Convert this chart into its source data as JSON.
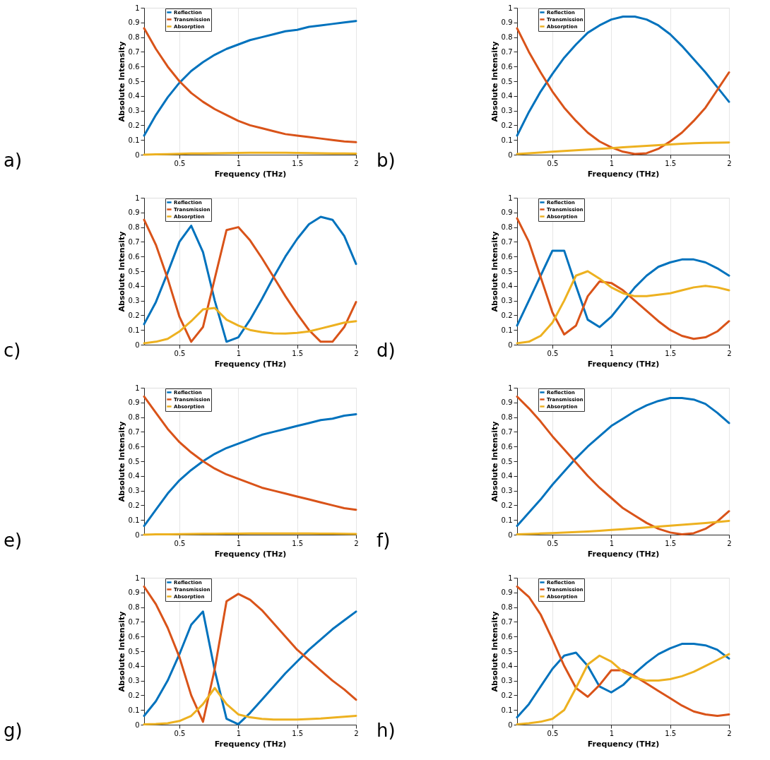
{
  "chart_data": [
    {
      "type": "line",
      "annotations": [
        "a)"
      ],
      "xlabel": "Frequency (THz)",
      "ylabel": "Absolute Intensity",
      "xlim": [
        0.2,
        2
      ],
      "xticks": [
        0.5,
        1,
        1.5,
        2
      ],
      "ylim": [
        0,
        1
      ],
      "yticks": [
        0,
        0.1,
        0.2,
        0.3,
        0.4,
        0.5,
        0.6,
        0.7,
        0.8,
        0.9,
        1
      ],
      "grid": "x",
      "legend": "top left",
      "x": [
        0.2,
        0.3,
        0.4,
        0.5,
        0.6,
        0.7,
        0.8,
        0.9,
        1.0,
        1.1,
        1.2,
        1.3,
        1.4,
        1.5,
        1.6,
        1.7,
        1.8,
        1.9,
        2.0
      ],
      "series": [
        {
          "name": "Reflection",
          "color": "#0072bd",
          "values": [
            0.13,
            0.27,
            0.39,
            0.49,
            0.57,
            0.63,
            0.68,
            0.72,
            0.75,
            0.78,
            0.8,
            0.82,
            0.84,
            0.85,
            0.87,
            0.88,
            0.89,
            0.9,
            0.91
          ]
        },
        {
          "name": "Transmission",
          "color": "#d95319",
          "values": [
            0.86,
            0.72,
            0.6,
            0.5,
            0.42,
            0.36,
            0.31,
            0.27,
            0.23,
            0.2,
            0.18,
            0.16,
            0.14,
            0.13,
            0.12,
            0.11,
            0.1,
            0.09,
            0.085
          ]
        },
        {
          "name": "Absorption",
          "color": "#edb120",
          "values": [
            0.0,
            0.002,
            0.004,
            0.006,
            0.008,
            0.009,
            0.01,
            0.011,
            0.012,
            0.013,
            0.013,
            0.013,
            0.013,
            0.012,
            0.011,
            0.01,
            0.009,
            0.008,
            0.007
          ]
        }
      ]
    },
    {
      "type": "line",
      "annotations": [
        "b)"
      ],
      "xlabel": "Frequency (THz)",
      "ylabel": "Absolute Intensity",
      "xlim": [
        0.2,
        2
      ],
      "xticks": [
        0.5,
        1,
        1.5,
        2
      ],
      "ylim": [
        0,
        1
      ],
      "yticks": [
        0,
        0.1,
        0.2,
        0.3,
        0.4,
        0.5,
        0.6,
        0.7,
        0.8,
        0.9,
        1
      ],
      "grid": "x",
      "legend": "top left",
      "x": [
        0.2,
        0.3,
        0.4,
        0.5,
        0.6,
        0.7,
        0.8,
        0.9,
        1.0,
        1.1,
        1.2,
        1.3,
        1.4,
        1.5,
        1.6,
        1.7,
        1.8,
        1.9,
        2.0
      ],
      "series": [
        {
          "name": "Reflection",
          "color": "#0072bd",
          "values": [
            0.13,
            0.29,
            0.43,
            0.55,
            0.66,
            0.75,
            0.83,
            0.88,
            0.92,
            0.94,
            0.94,
            0.92,
            0.88,
            0.82,
            0.74,
            0.65,
            0.56,
            0.46,
            0.36
          ]
        },
        {
          "name": "Transmission",
          "color": "#d95319",
          "values": [
            0.86,
            0.7,
            0.56,
            0.43,
            0.32,
            0.23,
            0.15,
            0.09,
            0.05,
            0.02,
            0.005,
            0.01,
            0.04,
            0.09,
            0.15,
            0.23,
            0.32,
            0.44,
            0.56
          ]
        },
        {
          "name": "Absorption",
          "color": "#edb120",
          "values": [
            0.005,
            0.01,
            0.015,
            0.02,
            0.025,
            0.03,
            0.035,
            0.04,
            0.045,
            0.05,
            0.055,
            0.06,
            0.065,
            0.07,
            0.075,
            0.078,
            0.08,
            0.082,
            0.083
          ]
        }
      ]
    },
    {
      "type": "line",
      "annotations": [
        "c)"
      ],
      "xlabel": "Frequency (THz)",
      "ylabel": "Absolute Intensity",
      "xlim": [
        0.2,
        2
      ],
      "xticks": [
        0.5,
        1,
        1.5,
        2
      ],
      "ylim": [
        0,
        1
      ],
      "yticks": [
        0,
        0.1,
        0.2,
        0.3,
        0.4,
        0.5,
        0.6,
        0.7,
        0.8,
        0.9,
        1
      ],
      "grid": "x",
      "legend": "top left",
      "x": [
        0.2,
        0.3,
        0.4,
        0.5,
        0.6,
        0.7,
        0.8,
        0.9,
        1.0,
        1.1,
        1.2,
        1.3,
        1.4,
        1.5,
        1.6,
        1.7,
        1.8,
        1.9,
        2.0
      ],
      "series": [
        {
          "name": "Reflection",
          "color": "#0072bd",
          "values": [
            0.14,
            0.29,
            0.49,
            0.7,
            0.81,
            0.63,
            0.3,
            0.02,
            0.05,
            0.17,
            0.31,
            0.46,
            0.6,
            0.72,
            0.82,
            0.87,
            0.85,
            0.74,
            0.55
          ]
        },
        {
          "name": "Transmission",
          "color": "#d95319",
          "values": [
            0.85,
            0.68,
            0.45,
            0.19,
            0.02,
            0.12,
            0.45,
            0.78,
            0.8,
            0.71,
            0.59,
            0.46,
            0.33,
            0.21,
            0.1,
            0.02,
            0.02,
            0.12,
            0.29
          ]
        },
        {
          "name": "Absorption",
          "color": "#edb120",
          "values": [
            0.01,
            0.02,
            0.04,
            0.09,
            0.16,
            0.24,
            0.25,
            0.17,
            0.13,
            0.1,
            0.085,
            0.077,
            0.076,
            0.08,
            0.09,
            0.11,
            0.13,
            0.15,
            0.16
          ]
        }
      ]
    },
    {
      "type": "line",
      "annotations": [
        "d)"
      ],
      "xlabel": "Frequency (THz)",
      "ylabel": "Absolute Intensity",
      "xlim": [
        0.2,
        2
      ],
      "xticks": [
        0.5,
        1,
        1.5,
        2
      ],
      "ylim": [
        0,
        1
      ],
      "yticks": [
        0,
        0.1,
        0.2,
        0.3,
        0.4,
        0.5,
        0.6,
        0.7,
        0.8,
        0.9,
        1
      ],
      "grid": "x",
      "legend": "top left",
      "x": [
        0.2,
        0.3,
        0.4,
        0.5,
        0.6,
        0.7,
        0.8,
        0.9,
        1.0,
        1.1,
        1.2,
        1.3,
        1.4,
        1.5,
        1.6,
        1.7,
        1.8,
        1.9,
        2.0
      ],
      "series": [
        {
          "name": "Reflection",
          "color": "#0072bd",
          "values": [
            0.13,
            0.3,
            0.47,
            0.64,
            0.64,
            0.4,
            0.17,
            0.12,
            0.19,
            0.29,
            0.39,
            0.47,
            0.53,
            0.56,
            0.58,
            0.58,
            0.56,
            0.52,
            0.47
          ]
        },
        {
          "name": "Transmission",
          "color": "#d95319",
          "values": [
            0.86,
            0.7,
            0.46,
            0.22,
            0.07,
            0.13,
            0.33,
            0.43,
            0.42,
            0.37,
            0.3,
            0.23,
            0.16,
            0.1,
            0.06,
            0.04,
            0.05,
            0.09,
            0.16
          ]
        },
        {
          "name": "Absorption",
          "color": "#edb120",
          "values": [
            0.01,
            0.02,
            0.06,
            0.15,
            0.3,
            0.47,
            0.5,
            0.45,
            0.39,
            0.35,
            0.33,
            0.33,
            0.34,
            0.35,
            0.37,
            0.39,
            0.4,
            0.39,
            0.37
          ]
        }
      ]
    },
    {
      "type": "line",
      "annotations": [
        "e)"
      ],
      "xlabel": "Frequency (THz)",
      "ylabel": "Absolute Intensity",
      "xlim": [
        0.2,
        2
      ],
      "xticks": [
        0.5,
        1,
        1.5,
        2
      ],
      "ylim": [
        0,
        1
      ],
      "yticks": [
        0,
        0.1,
        0.2,
        0.3,
        0.4,
        0.5,
        0.6,
        0.7,
        0.8,
        0.9,
        1
      ],
      "grid": "x",
      "legend": "top left",
      "x": [
        0.2,
        0.3,
        0.4,
        0.5,
        0.6,
        0.7,
        0.8,
        0.9,
        1.0,
        1.1,
        1.2,
        1.3,
        1.4,
        1.5,
        1.6,
        1.7,
        1.8,
        1.9,
        2.0
      ],
      "series": [
        {
          "name": "Reflection",
          "color": "#0072bd",
          "values": [
            0.06,
            0.17,
            0.28,
            0.37,
            0.44,
            0.5,
            0.55,
            0.59,
            0.62,
            0.65,
            0.68,
            0.7,
            0.72,
            0.74,
            0.76,
            0.78,
            0.79,
            0.81,
            0.82
          ]
        },
        {
          "name": "Transmission",
          "color": "#d95319",
          "values": [
            0.94,
            0.83,
            0.72,
            0.63,
            0.56,
            0.5,
            0.45,
            0.41,
            0.38,
            0.35,
            0.32,
            0.3,
            0.28,
            0.26,
            0.24,
            0.22,
            0.2,
            0.18,
            0.17
          ]
        },
        {
          "name": "Absorption",
          "color": "#edb120",
          "values": [
            0.0,
            0.002,
            0.003,
            0.004,
            0.005,
            0.006,
            0.006,
            0.007,
            0.007,
            0.008,
            0.008,
            0.008,
            0.008,
            0.008,
            0.008,
            0.007,
            0.007,
            0.006,
            0.005
          ]
        }
      ]
    },
    {
      "type": "line",
      "annotations": [
        "f)"
      ],
      "xlabel": "Frequency (THz)",
      "ylabel": "Absolute Intensity",
      "xlim": [
        0.2,
        2
      ],
      "xticks": [
        0.5,
        1,
        1.5,
        2
      ],
      "ylim": [
        0,
        1
      ],
      "yticks": [
        0,
        0.1,
        0.2,
        0.3,
        0.4,
        0.5,
        0.6,
        0.7,
        0.8,
        0.9,
        1
      ],
      "grid": "x",
      "legend": "top left",
      "x": [
        0.2,
        0.3,
        0.4,
        0.5,
        0.6,
        0.7,
        0.8,
        0.9,
        1.0,
        1.1,
        1.2,
        1.3,
        1.4,
        1.5,
        1.6,
        1.7,
        1.8,
        1.9,
        2.0
      ],
      "series": [
        {
          "name": "Reflection",
          "color": "#0072bd",
          "values": [
            0.06,
            0.15,
            0.24,
            0.34,
            0.43,
            0.52,
            0.6,
            0.67,
            0.74,
            0.79,
            0.84,
            0.88,
            0.91,
            0.93,
            0.93,
            0.92,
            0.89,
            0.83,
            0.76
          ]
        },
        {
          "name": "Transmission",
          "color": "#d95319",
          "values": [
            0.94,
            0.86,
            0.77,
            0.67,
            0.58,
            0.49,
            0.4,
            0.32,
            0.25,
            0.18,
            0.13,
            0.08,
            0.04,
            0.015,
            0.002,
            0.01,
            0.04,
            0.09,
            0.16
          ]
        },
        {
          "name": "Absorption",
          "color": "#edb120",
          "values": [
            0.003,
            0.005,
            0.008,
            0.011,
            0.014,
            0.018,
            0.022,
            0.027,
            0.032,
            0.037,
            0.043,
            0.049,
            0.055,
            0.061,
            0.067,
            0.073,
            0.079,
            0.086,
            0.094
          ]
        }
      ]
    },
    {
      "type": "line",
      "annotations": [
        "g)"
      ],
      "xlabel": "Frequency (THz)",
      "ylabel": "Absolute Intensity",
      "xlim": [
        0.2,
        2
      ],
      "xticks": [
        0.5,
        1,
        1.5,
        2
      ],
      "ylim": [
        0,
        1
      ],
      "yticks": [
        0,
        0.1,
        0.2,
        0.3,
        0.4,
        0.5,
        0.6,
        0.7,
        0.8,
        0.9,
        1
      ],
      "grid": "x",
      "legend": "top left",
      "x": [
        0.2,
        0.3,
        0.4,
        0.5,
        0.6,
        0.7,
        0.8,
        0.9,
        1.0,
        1.1,
        1.2,
        1.3,
        1.4,
        1.5,
        1.6,
        1.7,
        1.8,
        1.9,
        2.0
      ],
      "series": [
        {
          "name": "Reflection",
          "color": "#0072bd",
          "values": [
            0.06,
            0.16,
            0.3,
            0.48,
            0.68,
            0.77,
            0.37,
            0.04,
            0.003,
            0.08,
            0.17,
            0.26,
            0.35,
            0.43,
            0.51,
            0.58,
            0.65,
            0.71,
            0.77
          ]
        },
        {
          "name": "Transmission",
          "color": "#d95319",
          "values": [
            0.94,
            0.82,
            0.66,
            0.46,
            0.2,
            0.02,
            0.38,
            0.84,
            0.89,
            0.85,
            0.78,
            0.69,
            0.6,
            0.51,
            0.44,
            0.37,
            0.3,
            0.24,
            0.17
          ]
        },
        {
          "name": "Absorption",
          "color": "#edb120",
          "values": [
            0.002,
            0.005,
            0.01,
            0.025,
            0.06,
            0.14,
            0.25,
            0.14,
            0.07,
            0.05,
            0.04,
            0.035,
            0.035,
            0.035,
            0.038,
            0.042,
            0.048,
            0.054,
            0.06
          ]
        }
      ]
    },
    {
      "type": "line",
      "annotations": [
        "h)"
      ],
      "xlabel": "Frequency (THz)",
      "ylabel": "Absolute Intensity",
      "xlim": [
        0.2,
        2
      ],
      "xticks": [
        0.5,
        1,
        1.5,
        2
      ],
      "ylim": [
        0,
        1
      ],
      "yticks": [
        0,
        0.1,
        0.2,
        0.3,
        0.4,
        0.5,
        0.6,
        0.7,
        0.8,
        0.9,
        1
      ],
      "grid": "x",
      "legend": "top left",
      "x": [
        0.2,
        0.3,
        0.4,
        0.5,
        0.6,
        0.7,
        0.8,
        0.9,
        1.0,
        1.1,
        1.2,
        1.3,
        1.4,
        1.5,
        1.6,
        1.7,
        1.8,
        1.9,
        2.0
      ],
      "series": [
        {
          "name": "Reflection",
          "color": "#0072bd",
          "values": [
            0.05,
            0.14,
            0.26,
            0.38,
            0.47,
            0.49,
            0.4,
            0.26,
            0.22,
            0.27,
            0.35,
            0.42,
            0.48,
            0.52,
            0.55,
            0.55,
            0.54,
            0.51,
            0.45
          ]
        },
        {
          "name": "Transmission",
          "color": "#d95319",
          "values": [
            0.94,
            0.87,
            0.75,
            0.58,
            0.4,
            0.25,
            0.19,
            0.27,
            0.37,
            0.37,
            0.33,
            0.28,
            0.23,
            0.18,
            0.13,
            0.09,
            0.07,
            0.06,
            0.07
          ]
        },
        {
          "name": "Absorption",
          "color": "#edb120",
          "values": [
            0.003,
            0.01,
            0.02,
            0.04,
            0.1,
            0.25,
            0.41,
            0.47,
            0.43,
            0.36,
            0.32,
            0.3,
            0.3,
            0.31,
            0.33,
            0.36,
            0.4,
            0.44,
            0.48
          ]
        }
      ]
    }
  ]
}
